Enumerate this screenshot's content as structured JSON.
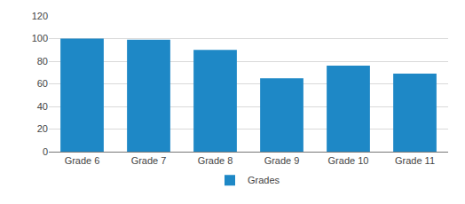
{
  "chart_data": {
    "type": "bar",
    "categories": [
      "Grade 6",
      "Grade 7",
      "Grade 8",
      "Grade 9",
      "Grade 10",
      "Grade 11"
    ],
    "series": [
      {
        "name": "Grades",
        "color": "#1e88c6",
        "values": [
          100,
          99,
          90,
          65,
          76,
          69
        ]
      }
    ],
    "ylim": [
      0,
      120
    ],
    "yticks": [
      0,
      20,
      40,
      60,
      80,
      100,
      120
    ],
    "grid": true,
    "legend": "bottom"
  }
}
